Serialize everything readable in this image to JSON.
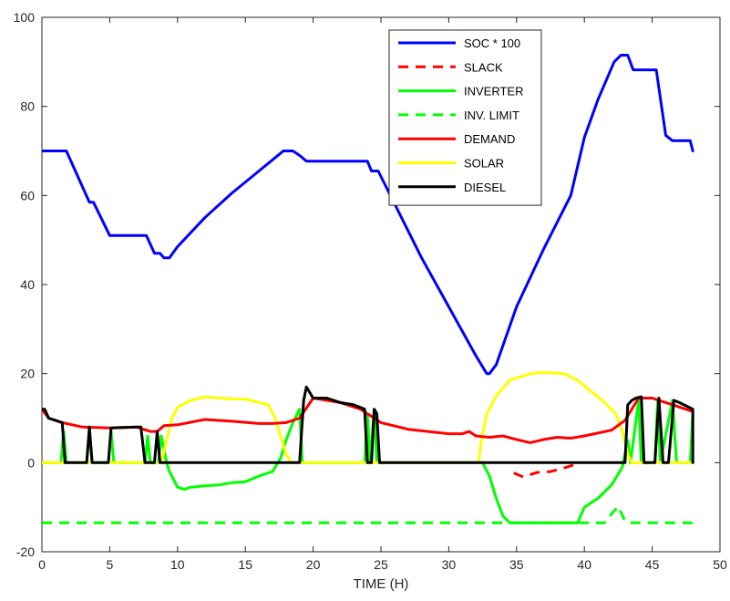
{
  "chart_data": {
    "type": "line",
    "title": "",
    "xlabel": "TIME (H)",
    "ylabel": "",
    "xlim": [
      0,
      50
    ],
    "ylim": [
      -20,
      100
    ],
    "xticks": [
      0,
      5,
      10,
      15,
      20,
      25,
      30,
      35,
      40,
      45,
      50
    ],
    "yticks": [
      -20,
      0,
      20,
      40,
      60,
      80,
      100
    ],
    "grid": false,
    "legend_position": "top-center",
    "series": [
      {
        "name": "SOC * 100",
        "color": "#0000ff",
        "dash": "solid",
        "points": [
          [
            0,
            70
          ],
          [
            1.8,
            70
          ],
          [
            3.5,
            58.5
          ],
          [
            3.8,
            58.5
          ],
          [
            5,
            51
          ],
          [
            7.7,
            51
          ],
          [
            8.3,
            47
          ],
          [
            8.7,
            47
          ],
          [
            9,
            46
          ],
          [
            9.4,
            46
          ],
          [
            10,
            48.5
          ],
          [
            12,
            55
          ],
          [
            14,
            60.5
          ],
          [
            16,
            65.5
          ],
          [
            17,
            68
          ],
          [
            17.8,
            70
          ],
          [
            18.5,
            70
          ],
          [
            19,
            69
          ],
          [
            19.5,
            67.7
          ],
          [
            24,
            67.7
          ],
          [
            24.3,
            65.5
          ],
          [
            24.8,
            65.5
          ],
          [
            28,
            46
          ],
          [
            30,
            35
          ],
          [
            32,
            24
          ],
          [
            32.8,
            20
          ],
          [
            33,
            20
          ],
          [
            33.5,
            22
          ],
          [
            35,
            35
          ],
          [
            37,
            48
          ],
          [
            39,
            60
          ],
          [
            40,
            73
          ],
          [
            41,
            81.5
          ],
          [
            42.2,
            90
          ],
          [
            42.7,
            91.5
          ],
          [
            43.2,
            91.5
          ],
          [
            43.6,
            88.2
          ],
          [
            45.3,
            88.2
          ],
          [
            46,
            73.5
          ],
          [
            46.5,
            72.3
          ],
          [
            47.8,
            72.3
          ],
          [
            48,
            70
          ]
        ]
      },
      {
        "name": "SLACK",
        "color": "#ff0000",
        "dash": "dashed",
        "points": [
          [
            34.8,
            -2.3
          ],
          [
            35.5,
            -3.2
          ],
          [
            36.5,
            -2.2
          ],
          [
            37.5,
            -2
          ],
          [
            38.5,
            -1.2
          ],
          [
            39.2,
            -0.5
          ]
        ]
      },
      {
        "name": "INVERTER",
        "color": "#00ff00",
        "dash": "solid",
        "points": [
          [
            0,
            0
          ],
          [
            1.4,
            0
          ],
          [
            1.6,
            7
          ],
          [
            1.8,
            0
          ],
          [
            3.3,
            0
          ],
          [
            3.5,
            7
          ],
          [
            3.7,
            0
          ],
          [
            4.9,
            0
          ],
          [
            5.1,
            7
          ],
          [
            5.3,
            0
          ],
          [
            7.6,
            0
          ],
          [
            7.8,
            6
          ],
          [
            8,
            0
          ],
          [
            8.6,
            0
          ],
          [
            8.8,
            6
          ],
          [
            9.2,
            0
          ],
          [
            9.4,
            -2
          ],
          [
            10,
            -5.5
          ],
          [
            10.5,
            -6
          ],
          [
            11,
            -5.5
          ],
          [
            12,
            -5.2
          ],
          [
            13,
            -5
          ],
          [
            14,
            -4.5
          ],
          [
            15,
            -4.3
          ],
          [
            16,
            -3
          ],
          [
            17,
            -2
          ],
          [
            17.6,
            1
          ],
          [
            18,
            5
          ],
          [
            18.5,
            9
          ],
          [
            19,
            12
          ],
          [
            19.2,
            0
          ],
          [
            23.8,
            0
          ],
          [
            24,
            11
          ],
          [
            24.2,
            0
          ],
          [
            24.5,
            12
          ],
          [
            24.7,
            0
          ],
          [
            31,
            0
          ],
          [
            32.5,
            0
          ],
          [
            33,
            -3
          ],
          [
            33.5,
            -8
          ],
          [
            34,
            -12
          ],
          [
            34.5,
            -13.5
          ],
          [
            39.5,
            -13.5
          ],
          [
            40,
            -10
          ],
          [
            41,
            -8
          ],
          [
            42,
            -5
          ],
          [
            42.8,
            -1
          ],
          [
            43.2,
            5
          ],
          [
            43.4,
            0
          ],
          [
            44,
            14
          ],
          [
            44.2,
            0
          ],
          [
            45.2,
            0
          ],
          [
            45.4,
            14
          ],
          [
            45.6,
            0
          ],
          [
            46.5,
            14
          ],
          [
            46.8,
            0
          ],
          [
            47.8,
            0
          ],
          [
            48,
            11
          ]
        ]
      },
      {
        "name": "INV. LIMIT",
        "color": "#00ff00",
        "dash": "dashed",
        "points": [
          [
            0,
            -13.5
          ],
          [
            41.5,
            -13.5
          ],
          [
            42,
            -11.5
          ],
          [
            42.5,
            -9.8
          ],
          [
            42.9,
            -12.5
          ],
          [
            43.2,
            -13.5
          ],
          [
            48,
            -13.5
          ]
        ]
      },
      {
        "name": "DEMAND",
        "color": "#ff0000",
        "dash": "solid",
        "points": [
          [
            0,
            12
          ],
          [
            0.5,
            10
          ],
          [
            1.5,
            9
          ],
          [
            3,
            8
          ],
          [
            5,
            7.8
          ],
          [
            7,
            8
          ],
          [
            7.5,
            7.5
          ],
          [
            8,
            7
          ],
          [
            8.5,
            7
          ],
          [
            9,
            8.3
          ],
          [
            10,
            8.5
          ],
          [
            12,
            9.7
          ],
          [
            14,
            9.3
          ],
          [
            16,
            8.8
          ],
          [
            17,
            8.8
          ],
          [
            18,
            9
          ],
          [
            19,
            10
          ],
          [
            20,
            14.5
          ],
          [
            22,
            13.5
          ],
          [
            23.5,
            12
          ],
          [
            24,
            11
          ],
          [
            25,
            9
          ],
          [
            27,
            7.5
          ],
          [
            30,
            6.5
          ],
          [
            31,
            6.5
          ],
          [
            31.5,
            7
          ],
          [
            32,
            6
          ],
          [
            33,
            5.7
          ],
          [
            34,
            6
          ],
          [
            35,
            5.2
          ],
          [
            36,
            4.5
          ],
          [
            37,
            5.2
          ],
          [
            38,
            5.7
          ],
          [
            39,
            5.5
          ],
          [
            40,
            6
          ],
          [
            42,
            7.3
          ],
          [
            43,
            9.5
          ],
          [
            44,
            14.5
          ],
          [
            45,
            14.5
          ],
          [
            46,
            13.5
          ],
          [
            47,
            12.5
          ],
          [
            48,
            11.5
          ]
        ]
      },
      {
        "name": "SOLAR",
        "color": "#ffff00",
        "dash": "solid",
        "points": [
          [
            0,
            0
          ],
          [
            8.8,
            0
          ],
          [
            9.2,
            5
          ],
          [
            9.6,
            10
          ],
          [
            10,
            12.5
          ],
          [
            11,
            14
          ],
          [
            12,
            14.8
          ],
          [
            14,
            14.3
          ],
          [
            15,
            14.3
          ],
          [
            16,
            13.5
          ],
          [
            16.7,
            13
          ],
          [
            17.2,
            10
          ],
          [
            17.6,
            6
          ],
          [
            18,
            2
          ],
          [
            18.4,
            0
          ],
          [
            32.2,
            0
          ],
          [
            32.4,
            5
          ],
          [
            32.8,
            11
          ],
          [
            33.5,
            15
          ],
          [
            34.5,
            18.5
          ],
          [
            36,
            20
          ],
          [
            37,
            20.3
          ],
          [
            38.5,
            20
          ],
          [
            39.5,
            18.5
          ],
          [
            40.5,
            16
          ],
          [
            41.5,
            13.5
          ],
          [
            42.3,
            11
          ],
          [
            42.8,
            7
          ],
          [
            43.2,
            2
          ],
          [
            43.5,
            0
          ],
          [
            48,
            0
          ]
        ]
      },
      {
        "name": "DIESEL",
        "color": "#000000",
        "dash": "solid",
        "points": [
          [
            0,
            12
          ],
          [
            0.2,
            12
          ],
          [
            0.5,
            10
          ],
          [
            1,
            9.5
          ],
          [
            1.5,
            9
          ],
          [
            1.7,
            0
          ],
          [
            3.3,
            0
          ],
          [
            3.5,
            8
          ],
          [
            3.7,
            0
          ],
          [
            4.9,
            0
          ],
          [
            5.1,
            7.8
          ],
          [
            7,
            8
          ],
          [
            7.3,
            8
          ],
          [
            7.6,
            0
          ],
          [
            8.3,
            0
          ],
          [
            8.5,
            7
          ],
          [
            8.7,
            0
          ],
          [
            19,
            0
          ],
          [
            19.3,
            14
          ],
          [
            19.5,
            17
          ],
          [
            20,
            14.5
          ],
          [
            21,
            14.5
          ],
          [
            22,
            13.5
          ],
          [
            23,
            13
          ],
          [
            23.8,
            12
          ],
          [
            24,
            0
          ],
          [
            24.3,
            0
          ],
          [
            24.5,
            12
          ],
          [
            24.7,
            11
          ],
          [
            24.9,
            0
          ],
          [
            43,
            0
          ],
          [
            43.2,
            13
          ],
          [
            43.5,
            14
          ],
          [
            43.8,
            14.5
          ],
          [
            44.2,
            14.8
          ],
          [
            44.4,
            0
          ],
          [
            45.2,
            0
          ],
          [
            45.5,
            14.5
          ],
          [
            45.8,
            0
          ],
          [
            46.2,
            0
          ],
          [
            46.6,
            14
          ],
          [
            47,
            13.5
          ],
          [
            48,
            12
          ],
          [
            48,
            0
          ]
        ]
      }
    ]
  }
}
